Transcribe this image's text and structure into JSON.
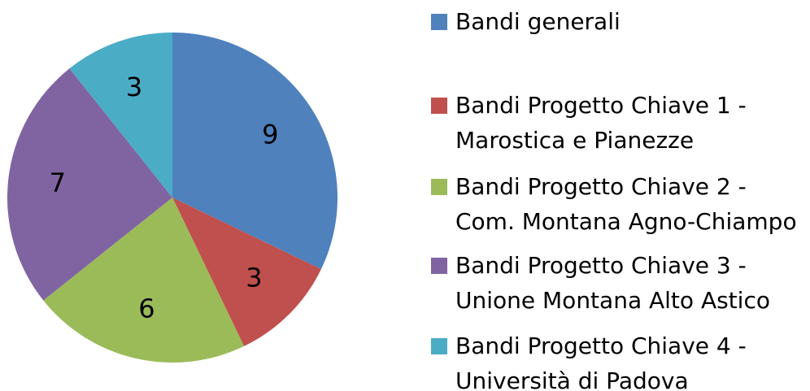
{
  "chart_data": {
    "type": "pie",
    "categories": [
      "Bandi generali",
      "Bandi Progetto Chiave 1 -\nMarostica e Pianezze",
      "Bandi Progetto Chiave 2 -\nCom. Montana Agno-Chiampo",
      "Bandi Progetto Chiave 3 -\nUnione Montana Alto Astico",
      "Bandi Progetto Chiave 4 -\nUniversità di Padova"
    ],
    "values": [
      9,
      3,
      6,
      7,
      3
    ],
    "colors": [
      "#4f81bd",
      "#c0504d",
      "#9bbb59",
      "#8064a2",
      "#4bacc6"
    ],
    "legend": "right"
  }
}
